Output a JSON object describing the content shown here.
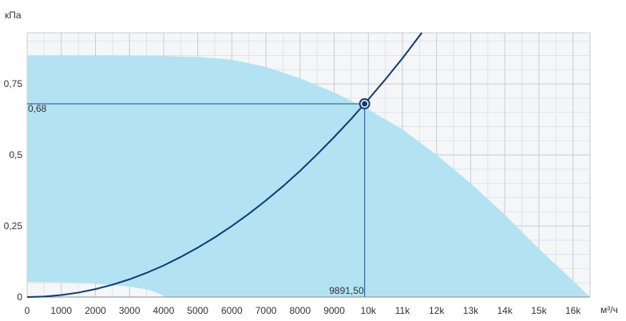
{
  "chart_data": {
    "type": "area",
    "ylabel": "кПа",
    "xlabel": "м³/ч",
    "xlim": [
      0,
      16500
    ],
    "ylim": [
      0,
      0.93
    ],
    "grid": true,
    "x_ticks": [
      {
        "value": 0,
        "label": "0"
      },
      {
        "value": 1000,
        "label": "1000"
      },
      {
        "value": 2000,
        "label": "2000"
      },
      {
        "value": 3000,
        "label": "3000"
      },
      {
        "value": 4000,
        "label": "4000"
      },
      {
        "value": 5000,
        "label": "5000"
      },
      {
        "value": 6000,
        "label": "6000"
      },
      {
        "value": 7000,
        "label": "7000"
      },
      {
        "value": 8000,
        "label": "8000"
      },
      {
        "value": 9000,
        "label": "9000"
      },
      {
        "value": 10000,
        "label": "10k"
      },
      {
        "value": 11000,
        "label": "11k"
      },
      {
        "value": 12000,
        "label": "12k"
      },
      {
        "value": 13000,
        "label": "13k"
      },
      {
        "value": 14000,
        "label": "14k"
      },
      {
        "value": 15000,
        "label": "15k"
      },
      {
        "value": 16000,
        "label": "16k"
      }
    ],
    "y_ticks": [
      {
        "value": 0,
        "label": "0"
      },
      {
        "value": 0.25,
        "label": "0,25"
      },
      {
        "value": 0.5,
        "label": "0,5"
      },
      {
        "value": 0.75,
        "label": "0,75"
      }
    ],
    "operating_area": {
      "upper": [
        [
          0,
          0.85
        ],
        [
          2000,
          0.85
        ],
        [
          4000,
          0.848
        ],
        [
          5000,
          0.845
        ],
        [
          6000,
          0.835
        ],
        [
          7000,
          0.81
        ],
        [
          8000,
          0.77
        ],
        [
          9000,
          0.72
        ],
        [
          10000,
          0.66
        ],
        [
          11000,
          0.59
        ],
        [
          12000,
          0.5
        ],
        [
          13000,
          0.4
        ],
        [
          14000,
          0.29
        ],
        [
          15000,
          0.17
        ],
        [
          15800,
          0.08
        ],
        [
          16500,
          0
        ]
      ],
      "lower": [
        [
          0,
          0.053
        ],
        [
          1000,
          0.052
        ],
        [
          2000,
          0.047
        ],
        [
          3000,
          0.037
        ],
        [
          3500,
          0.027
        ],
        [
          3800,
          0.015
        ],
        [
          4000,
          0.005
        ],
        [
          4100,
          0
        ]
      ],
      "color": "#b3e3f2"
    },
    "system_curve": {
      "points": [
        [
          0,
          0
        ],
        [
          500,
          0.0017
        ],
        [
          1000,
          0.007
        ],
        [
          1500,
          0.0156
        ],
        [
          2000,
          0.0278
        ],
        [
          2500,
          0.0434
        ],
        [
          3000,
          0.0625
        ],
        [
          3500,
          0.085
        ],
        [
          4000,
          0.111
        ],
        [
          4500,
          0.141
        ],
        [
          5000,
          0.174
        ],
        [
          5500,
          0.21
        ],
        [
          6000,
          0.25
        ],
        [
          6500,
          0.293
        ],
        [
          7000,
          0.34
        ],
        [
          7500,
          0.39
        ],
        [
          8000,
          0.444
        ],
        [
          8500,
          0.502
        ],
        [
          9000,
          0.563
        ],
        [
          9500,
          0.627
        ],
        [
          9891.5,
          0.68
        ],
        [
          10000,
          0.695
        ],
        [
          10500,
          0.766
        ],
        [
          11000,
          0.84
        ],
        [
          11600,
          0.935
        ]
      ],
      "color": "#0d3b78"
    },
    "operating_point": {
      "x": 9891.5,
      "y": 0.68,
      "x_label": "9891,50",
      "y_label": "0,68",
      "line_color": "#3a6ea8"
    }
  }
}
